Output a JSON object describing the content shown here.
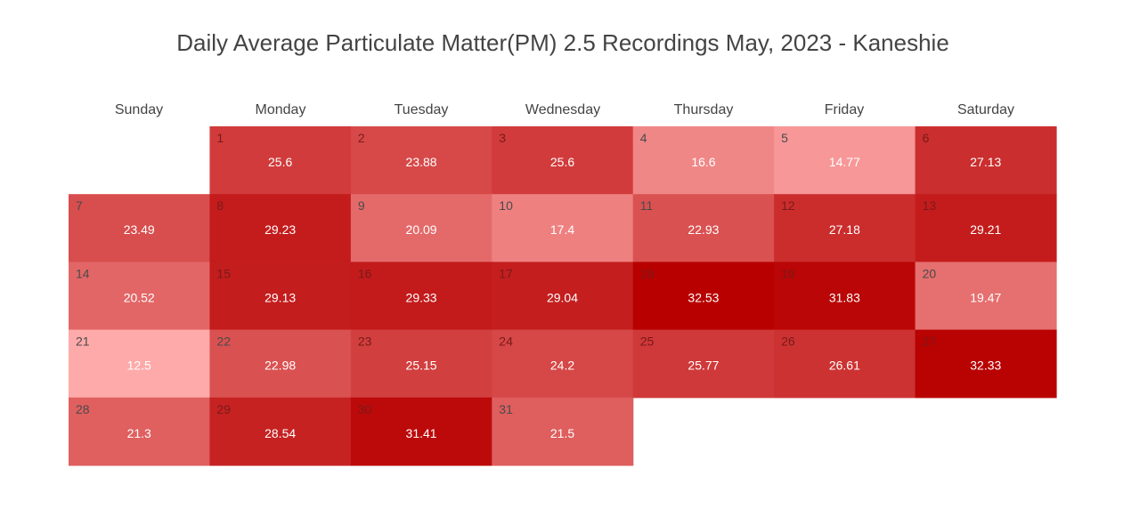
{
  "chart_data": {
    "type": "heatmap",
    "title": "Daily Average Particulate Matter(PM) 2.5 Recordings May, 2023 - Kaneshie",
    "weekdays": [
      "Sunday",
      "Monday",
      "Tuesday",
      "Wednesday",
      "Thursday",
      "Friday",
      "Saturday"
    ],
    "first_weekday_index": 1,
    "days": [
      {
        "day": 1,
        "value": 25.6
      },
      {
        "day": 2,
        "value": 23.88
      },
      {
        "day": 3,
        "value": 25.6
      },
      {
        "day": 4,
        "value": 16.6
      },
      {
        "day": 5,
        "value": 14.77
      },
      {
        "day": 6,
        "value": 27.13
      },
      {
        "day": 7,
        "value": 23.49
      },
      {
        "day": 8,
        "value": 29.23
      },
      {
        "day": 9,
        "value": 20.09
      },
      {
        "day": 10,
        "value": 17.4
      },
      {
        "day": 11,
        "value": 22.93
      },
      {
        "day": 12,
        "value": 27.18
      },
      {
        "day": 13,
        "value": 29.21
      },
      {
        "day": 14,
        "value": 20.52
      },
      {
        "day": 15,
        "value": 29.13
      },
      {
        "day": 16,
        "value": 29.33
      },
      {
        "day": 17,
        "value": 29.04
      },
      {
        "day": 18,
        "value": 32.53
      },
      {
        "day": 19,
        "value": 31.83
      },
      {
        "day": 20,
        "value": 19.47
      },
      {
        "day": 21,
        "value": 12.5
      },
      {
        "day": 22,
        "value": 22.98
      },
      {
        "day": 23,
        "value": 25.15
      },
      {
        "day": 24,
        "value": 24.2
      },
      {
        "day": 25,
        "value": 25.77
      },
      {
        "day": 26,
        "value": 26.61
      },
      {
        "day": 27,
        "value": 32.33
      },
      {
        "day": 28,
        "value": 21.3
      },
      {
        "day": 29,
        "value": 28.54
      },
      {
        "day": 30,
        "value": 31.41
      },
      {
        "day": 31,
        "value": 21.5
      }
    ],
    "color_scale": {
      "low": "#ffaaaa",
      "high": "#b80000"
    }
  }
}
